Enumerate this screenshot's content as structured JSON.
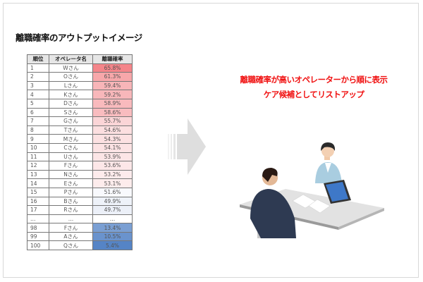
{
  "title": "離職確率のアウトプットイメージ",
  "table": {
    "headers": [
      "順位",
      "オペレータ名",
      "離職確率"
    ],
    "rows": [
      {
        "rank": "1",
        "name": "Wさん",
        "rate": "65.8%",
        "color": "#f4858a"
      },
      {
        "rank": "2",
        "name": "Oさん",
        "rate": "61.3%",
        "color": "#f7a7aa"
      },
      {
        "rank": "3",
        "name": "Lさん",
        "rate": "59.4%",
        "color": "#f8b5b8"
      },
      {
        "rank": "4",
        "name": "Kさん",
        "rate": "59.2%",
        "color": "#f8b7ba"
      },
      {
        "rank": "5",
        "name": "Dさん",
        "rate": "58.9%",
        "color": "#f9babd"
      },
      {
        "rank": "6",
        "name": "Sさん",
        "rate": "58.6%",
        "color": "#f9bcbf"
      },
      {
        "rank": "7",
        "name": "Gさん",
        "rate": "55.7%",
        "color": "#fbd5d7"
      },
      {
        "rank": "8",
        "name": "Tさん",
        "rate": "54.6%",
        "color": "#fcdfe0"
      },
      {
        "rank": "9",
        "name": "Mさん",
        "rate": "54.3%",
        "color": "#fce1e2"
      },
      {
        "rank": "10",
        "name": "Cさん",
        "rate": "54.1%",
        "color": "#fce3e4"
      },
      {
        "rank": "11",
        "name": "Uさん",
        "rate": "53.9%",
        "color": "#fce5e6"
      },
      {
        "rank": "12",
        "name": "Fさん",
        "rate": "53.6%",
        "color": "#fde7e8"
      },
      {
        "rank": "13",
        "name": "Nさん",
        "rate": "53.2%",
        "color": "#fdebec"
      },
      {
        "rank": "14",
        "name": "Eさん",
        "rate": "53.1%",
        "color": "#fdecec"
      },
      {
        "rank": "15",
        "name": "Pさん",
        "rate": "51.6%",
        "color": "#f8f9fd"
      },
      {
        "rank": "16",
        "name": "Bさん",
        "rate": "49.9%",
        "color": "#eef2f9"
      },
      {
        "rank": "17",
        "name": "Rさん",
        "rate": "49.7%",
        "color": "#ecf0f8"
      },
      {
        "rank": "…",
        "name": "…",
        "rate": "…",
        "color": "#ffffff"
      },
      {
        "rank": "98",
        "name": "Fさん",
        "rate": "13.4%",
        "color": "#7a9fd3"
      },
      {
        "rank": "99",
        "name": "Aさん",
        "rate": "10.5%",
        "color": "#6a93cd"
      },
      {
        "rank": "100",
        "name": "Qさん",
        "rate": "5.4%",
        "color": "#5584c6"
      }
    ]
  },
  "message": {
    "line1": "離職確率が高いオペレーターから順に表示",
    "line2": "ケア候補としてリストアップ",
    "color": "#f01010"
  }
}
